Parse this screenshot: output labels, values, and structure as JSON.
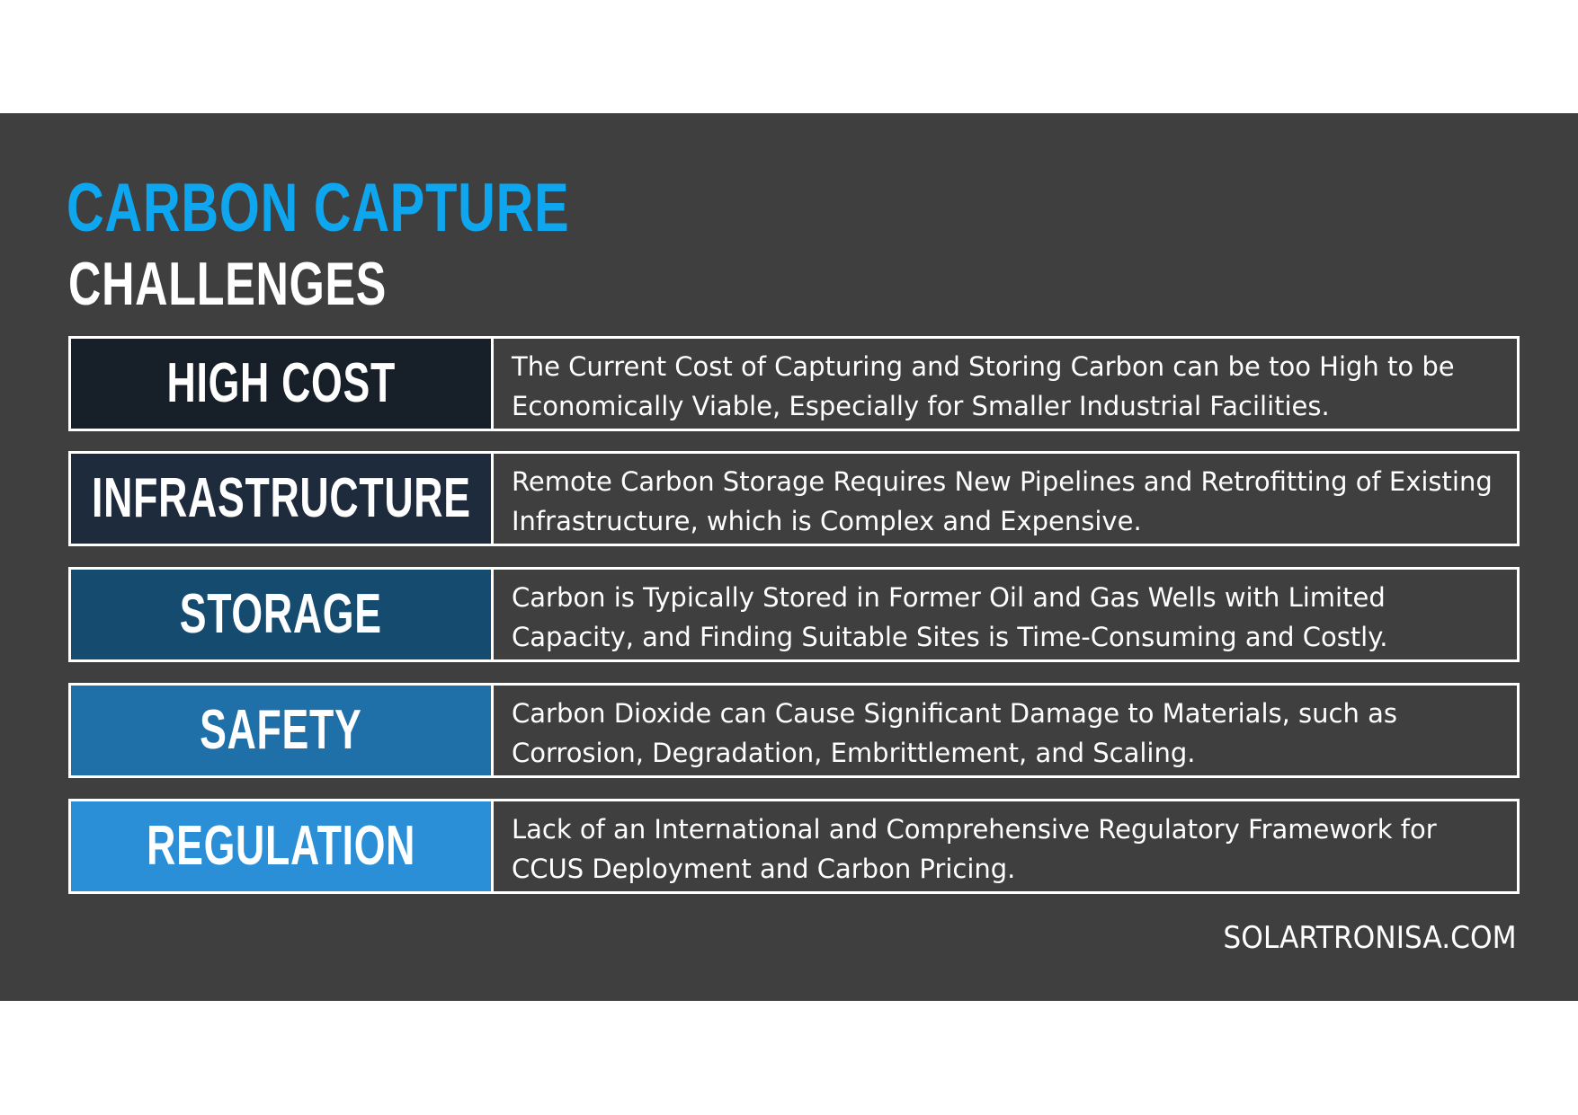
{
  "title": "CARBON CAPTURE",
  "subtitle": "CHALLENGES",
  "colors": {
    "title_accent": "#0ea6ee",
    "background": "#3f3f3f",
    "label_colors": [
      "#171f29",
      "#1e2b3c",
      "#154b6e",
      "#1f6fa8",
      "#2a8fd6"
    ]
  },
  "challenges": [
    {
      "label": "HIGH COST",
      "description": "The Current Cost of Capturing and Storing Carbon can be too High to be Economically Viable, Especially for Smaller Industrial Facilities."
    },
    {
      "label": "INFRASTRUCTURE",
      "description": "Remote Carbon Storage Requires New Pipelines and Retrofitting of Existing Infrastructure, which is Complex and Expensive."
    },
    {
      "label": "STORAGE",
      "description": "Carbon is Typically Stored in Former Oil and Gas Wells with Limited Capacity, and Finding Suitable Sites is Time-Consuming and Costly."
    },
    {
      "label": "SAFETY",
      "description": "Carbon Dioxide can Cause Significant Damage to Materials, such as Corrosion, Degradation, Embrittlement, and Scaling."
    },
    {
      "label": "REGULATION",
      "description": "Lack of an International and Comprehensive Regulatory Framework for CCUS Deployment and Carbon Pricing."
    }
  ],
  "footer": "SOLARTRONISA.COM"
}
